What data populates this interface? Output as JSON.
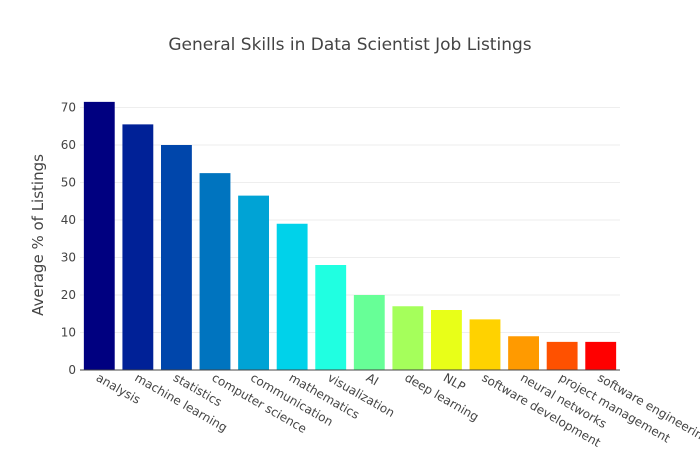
{
  "chart_data": {
    "type": "bar",
    "title": "General Skills in Data Scientist Job Listings",
    "xlabel": "",
    "ylabel": "Average % of Listings",
    "ylim": [
      0,
      72
    ],
    "yticks": [
      0,
      10,
      20,
      30,
      40,
      50,
      60,
      70
    ],
    "grid": true,
    "legend": "none",
    "categories": [
      "analysis",
      "machine learning",
      "statistics",
      "computer science",
      "communication",
      "mathematics",
      "visualization",
      "AI",
      "deep learning",
      "NLP",
      "software development",
      "neural networks",
      "project management",
      "software engineering"
    ],
    "values": [
      71.5,
      65.5,
      60,
      52.5,
      46.5,
      39,
      28,
      20,
      17,
      16,
      13.5,
      9,
      7.5,
      7.5
    ],
    "colors": [
      "#000080",
      "#002197",
      "#0046ab",
      "#0074bf",
      "#00a3d5",
      "#00d2ea",
      "#20ffe1",
      "#67ff97",
      "#a5ff5b",
      "#e8ff18",
      "#ffd200",
      "#ff9a00",
      "#ff5100",
      "#ff0000"
    ]
  }
}
